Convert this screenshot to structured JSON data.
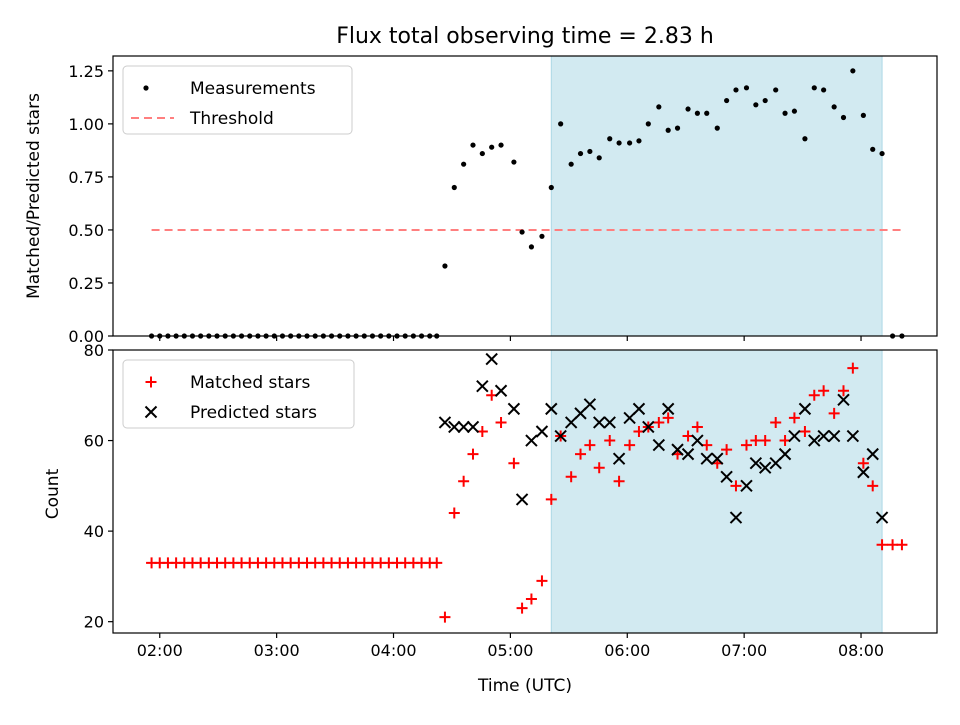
{
  "chart_data": {
    "title": "Flux total observing time = 2.83 h",
    "xlabel": "Time (UTC)",
    "x_tick_labels": [
      "02:00",
      "03:00",
      "04:00",
      "05:00",
      "06:00",
      "07:00",
      "08:00"
    ],
    "x_tick_hours": [
      2,
      3,
      4,
      5,
      6,
      7,
      8
    ],
    "xlim_hours": [
      1.6,
      8.65
    ],
    "highlight_span_hours": [
      5.35,
      8.18
    ],
    "highlight_color": "#add8e6",
    "panels": [
      {
        "type": "scatter",
        "ylabel": "Matched/Predicted stars",
        "ylim": [
          0,
          1.32
        ],
        "y_ticks": [
          0.0,
          0.25,
          0.5,
          0.75,
          1.0,
          1.25
        ],
        "y_tick_labels": [
          "0.00",
          "0.25",
          "0.50",
          "0.75",
          "1.00",
          "1.25"
        ],
        "legend": {
          "location": "upper-left",
          "entries": [
            "Measurements",
            "Threshold"
          ]
        },
        "threshold": {
          "name": "Threshold",
          "value": 0.5,
          "x_range_hours": [
            1.93,
            8.35
          ],
          "color": "#ff7f7f"
        },
        "series": [
          {
            "name": "Measurements",
            "color": "#000000",
            "x_hours": [
              1.93,
              2.0,
              2.07,
              2.14,
              2.21,
              2.28,
              2.35,
              2.42,
              2.49,
              2.56,
              2.63,
              2.7,
              2.77,
              2.84,
              2.91,
              2.98,
              3.05,
              3.12,
              3.19,
              3.26,
              3.33,
              3.4,
              3.47,
              3.54,
              3.61,
              3.68,
              3.75,
              3.82,
              3.89,
              3.96,
              4.03,
              4.1,
              4.17,
              4.24,
              4.31,
              4.37,
              4.44,
              4.52,
              4.6,
              4.68,
              4.76,
              4.84,
              4.92,
              5.03,
              5.1,
              5.18,
              5.27,
              5.35,
              5.43,
              5.52,
              5.6,
              5.68,
              5.76,
              5.85,
              5.93,
              6.02,
              6.1,
              6.18,
              6.27,
              6.35,
              6.43,
              6.52,
              6.6,
              6.68,
              6.77,
              6.85,
              6.93,
              7.02,
              7.1,
              7.18,
              7.27,
              7.35,
              7.43,
              7.52,
              7.6,
              7.68,
              7.77,
              7.85,
              7.93,
              8.02,
              8.1,
              8.18,
              8.27,
              8.35
            ],
            "y": [
              0,
              0,
              0,
              0,
              0,
              0,
              0,
              0,
              0,
              0,
              0,
              0,
              0,
              0,
              0,
              0,
              0,
              0,
              0,
              0,
              0,
              0,
              0,
              0,
              0,
              0,
              0,
              0,
              0,
              0,
              0,
              0,
              0,
              0,
              0,
              0,
              0.33,
              0.7,
              0.81,
              0.9,
              0.86,
              0.89,
              0.9,
              0.82,
              0.49,
              0.42,
              0.47,
              0.7,
              1.0,
              0.81,
              0.86,
              0.87,
              0.84,
              0.93,
              0.91,
              0.91,
              0.92,
              1.0,
              1.08,
              0.97,
              0.98,
              1.07,
              1.05,
              1.05,
              0.98,
              1.11,
              1.16,
              1.17,
              1.09,
              1.11,
              1.16,
              1.05,
              1.06,
              0.93,
              1.17,
              1.16,
              1.08,
              1.03,
              1.25,
              1.04,
              0.88,
              0.86,
              0,
              0
            ]
          }
        ]
      },
      {
        "type": "scatter",
        "ylabel": "Count",
        "ylim": [
          17.5,
          80
        ],
        "y_ticks": [
          20,
          40,
          60,
          80
        ],
        "y_tick_labels": [
          "20",
          "40",
          "60",
          "80"
        ],
        "legend": {
          "location": "upper-left",
          "entries": [
            "Matched stars",
            "Predicted stars"
          ]
        },
        "series": [
          {
            "name": "Matched stars",
            "marker": "plus",
            "color": "#ff0000",
            "x_hours": [
              1.93,
              2.0,
              2.07,
              2.14,
              2.21,
              2.28,
              2.35,
              2.42,
              2.49,
              2.56,
              2.63,
              2.7,
              2.77,
              2.84,
              2.91,
              2.98,
              3.05,
              3.12,
              3.19,
              3.26,
              3.33,
              3.4,
              3.47,
              3.54,
              3.61,
              3.68,
              3.75,
              3.82,
              3.89,
              3.96,
              4.03,
              4.1,
              4.17,
              4.24,
              4.31,
              4.37,
              4.44,
              4.52,
              4.6,
              4.68,
              4.76,
              4.84,
              4.92,
              5.03,
              5.1,
              5.18,
              5.27,
              5.35,
              5.43,
              5.52,
              5.6,
              5.68,
              5.76,
              5.85,
              5.93,
              6.02,
              6.1,
              6.18,
              6.27,
              6.35,
              6.43,
              6.52,
              6.6,
              6.68,
              6.77,
              6.85,
              6.93,
              7.02,
              7.1,
              7.18,
              7.27,
              7.35,
              7.43,
              7.52,
              7.6,
              7.68,
              7.77,
              7.85,
              7.93,
              8.02,
              8.1,
              8.18,
              8.27,
              8.35
            ],
            "y": [
              33,
              33,
              33,
              33,
              33,
              33,
              33,
              33,
              33,
              33,
              33,
              33,
              33,
              33,
              33,
              33,
              33,
              33,
              33,
              33,
              33,
              33,
              33,
              33,
              33,
              33,
              33,
              33,
              33,
              33,
              33,
              33,
              33,
              33,
              33,
              33,
              21,
              44,
              51,
              57,
              62,
              70,
              64,
              55,
              23,
              25,
              29,
              47,
              61,
              52,
              57,
              59,
              54,
              60,
              51,
              59,
              62,
              63,
              64,
              65,
              57,
              61,
              63,
              59,
              55,
              58,
              50,
              59,
              60,
              60,
              64,
              60,
              65,
              62,
              70,
              71,
              66,
              71,
              76,
              55,
              50,
              37,
              37,
              37
            ]
          },
          {
            "name": "Predicted stars",
            "marker": "x",
            "color": "#000000",
            "x_hours": [
              4.44,
              4.52,
              4.6,
              4.68,
              4.76,
              4.84,
              4.92,
              5.03,
              5.1,
              5.18,
              5.27,
              5.35,
              5.43,
              5.52,
              5.6,
              5.68,
              5.76,
              5.85,
              5.93,
              6.02,
              6.1,
              6.18,
              6.27,
              6.35,
              6.43,
              6.52,
              6.6,
              6.68,
              6.77,
              6.85,
              6.93,
              7.02,
              7.1,
              7.18,
              7.27,
              7.35,
              7.43,
              7.52,
              7.6,
              7.68,
              7.77,
              7.85,
              7.93,
              8.02,
              8.1,
              8.18
            ],
            "y": [
              64,
              63,
              63,
              63,
              72,
              78,
              71,
              67,
              47,
              60,
              62,
              67,
              61,
              64,
              66,
              68,
              64,
              64,
              56,
              65,
              67,
              63,
              59,
              67,
              58,
              57,
              60,
              56,
              56,
              52,
              43,
              50,
              55,
              54,
              55,
              57,
              61,
              67,
              60,
              61,
              61,
              69,
              61,
              53,
              57,
              43
            ]
          }
        ]
      }
    ]
  }
}
